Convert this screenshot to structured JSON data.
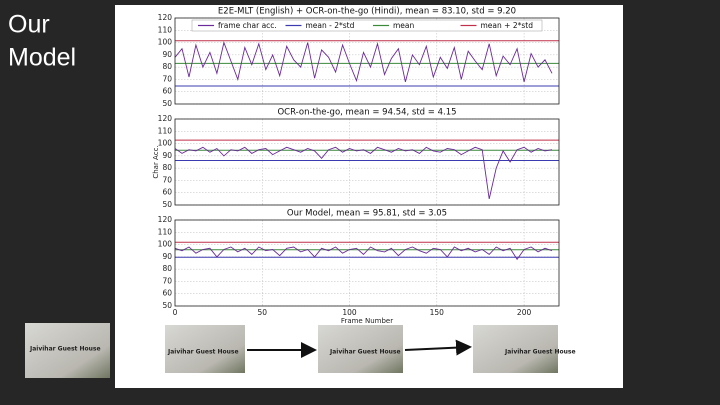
{
  "slide": {
    "title_lines": [
      "Our",
      "Model"
    ],
    "photo_text": "Jaivihar Guest House"
  },
  "chart_data": [
    {
      "type": "line",
      "title": "E2E-MLT (English) + OCR-on-the-go (Hindi), mean = 83.10, std = 9.20",
      "x": [
        0,
        4,
        8,
        12,
        16,
        20,
        24,
        28,
        32,
        36,
        40,
        44,
        48,
        52,
        56,
        60,
        64,
        68,
        72,
        76,
        80,
        84,
        88,
        92,
        96,
        100,
        104,
        108,
        112,
        116,
        120,
        124,
        128,
        132,
        136,
        140,
        144,
        148,
        152,
        156,
        160,
        164,
        168,
        172,
        176,
        180,
        184,
        188,
        192,
        196,
        200,
        204,
        208,
        212,
        216
      ],
      "series": [
        {
          "name": "frame char acc.",
          "color": "#6b2a9a",
          "values": [
            88,
            95,
            72,
            98,
            80,
            92,
            75,
            100,
            85,
            70,
            96,
            82,
            99,
            78,
            90,
            73,
            97,
            86,
            80,
            100,
            71,
            94,
            88,
            76,
            98,
            83,
            69,
            92,
            80,
            99,
            74,
            87,
            95,
            68,
            90,
            82,
            97,
            72,
            88,
            79,
            96,
            70,
            93,
            85,
            78,
            99,
            73,
            89,
            82,
            95,
            68,
            91,
            80,
            86,
            75
          ]
        }
      ],
      "hlines": [
        {
          "name": "mean - 2*std",
          "value": 64.7,
          "color": "#3b3bb0"
        },
        {
          "name": "mean",
          "value": 83.1,
          "color": "#3a8a3a"
        },
        {
          "name": "mean + 2*std",
          "value": 101.5,
          "color": "#c0304a"
        }
      ],
      "legend": "upper center",
      "xlim": [
        0,
        220
      ],
      "xticks": [
        0,
        50,
        100,
        150,
        200
      ],
      "ylim": [
        50,
        120
      ],
      "yticks": [
        50,
        60,
        70,
        80,
        90,
        100,
        110,
        120
      ],
      "grid": true
    },
    {
      "type": "line",
      "title": "OCR-on-the-go, mean = 94.54, std = 4.15",
      "ylabel": "Char Acc.",
      "x": [
        0,
        4,
        8,
        12,
        16,
        20,
        24,
        28,
        32,
        36,
        40,
        44,
        48,
        52,
        56,
        60,
        64,
        68,
        72,
        76,
        80,
        84,
        88,
        92,
        96,
        100,
        104,
        108,
        112,
        116,
        120,
        124,
        128,
        132,
        136,
        140,
        144,
        148,
        152,
        156,
        160,
        164,
        168,
        172,
        176,
        180,
        184,
        188,
        192,
        196,
        200,
        204,
        208,
        212,
        216
      ],
      "series": [
        {
          "color": "#6b2a9a",
          "values": [
            96,
            92,
            95,
            94,
            97,
            93,
            96,
            90,
            95,
            94,
            97,
            92,
            95,
            96,
            91,
            94,
            97,
            95,
            93,
            96,
            94,
            88,
            95,
            97,
            93,
            96,
            94,
            95,
            92,
            97,
            95,
            93,
            96,
            94,
            95,
            92,
            97,
            94,
            93,
            96,
            95,
            91,
            94,
            97,
            95,
            55,
            80,
            94,
            85,
            95,
            97,
            93,
            96,
            94,
            95
          ]
        }
      ],
      "hlines": [
        {
          "value": 86.24,
          "color": "#3b3bb0"
        },
        {
          "value": 94.54,
          "color": "#3a8a3a"
        },
        {
          "value": 102.84,
          "color": "#c0304a"
        }
      ],
      "xlim": [
        0,
        220
      ],
      "xticks": [
        0,
        50,
        100,
        150,
        200
      ],
      "ylim": [
        50,
        120
      ],
      "yticks": [
        50,
        60,
        70,
        80,
        90,
        100,
        110,
        120
      ],
      "grid": true
    },
    {
      "type": "line",
      "title": "Our Model, mean = 95.81, std = 3.05",
      "xlabel": "Frame Number",
      "x": [
        0,
        4,
        8,
        12,
        16,
        20,
        24,
        28,
        32,
        36,
        40,
        44,
        48,
        52,
        56,
        60,
        64,
        68,
        72,
        76,
        80,
        84,
        88,
        92,
        96,
        100,
        104,
        108,
        112,
        116,
        120,
        124,
        128,
        132,
        136,
        140,
        144,
        148,
        152,
        156,
        160,
        164,
        168,
        172,
        176,
        180,
        184,
        188,
        192,
        196,
        200,
        204,
        208,
        212,
        216
      ],
      "series": [
        {
          "color": "#6b2a9a",
          "values": [
            97,
            95,
            98,
            93,
            96,
            97,
            90,
            96,
            98,
            94,
            97,
            92,
            98,
            95,
            96,
            91,
            97,
            98,
            94,
            96,
            90,
            97,
            95,
            98,
            93,
            96,
            97,
            92,
            98,
            95,
            94,
            97,
            91,
            96,
            98,
            95,
            93,
            97,
            96,
            90,
            98,
            95,
            97,
            94,
            96,
            92,
            98,
            95,
            97,
            88,
            96,
            98,
            94,
            97,
            95
          ]
        }
      ],
      "hlines": [
        {
          "value": 89.71,
          "color": "#3b3bb0"
        },
        {
          "value": 95.81,
          "color": "#3a8a3a"
        },
        {
          "value": 101.91,
          "color": "#c0304a"
        }
      ],
      "xlim": [
        0,
        220
      ],
      "xticks": [
        0,
        50,
        100,
        150,
        200
      ],
      "ylim": [
        50,
        120
      ],
      "yticks": [
        50,
        60,
        70,
        80,
        90,
        100,
        110,
        120
      ],
      "grid": true
    }
  ]
}
